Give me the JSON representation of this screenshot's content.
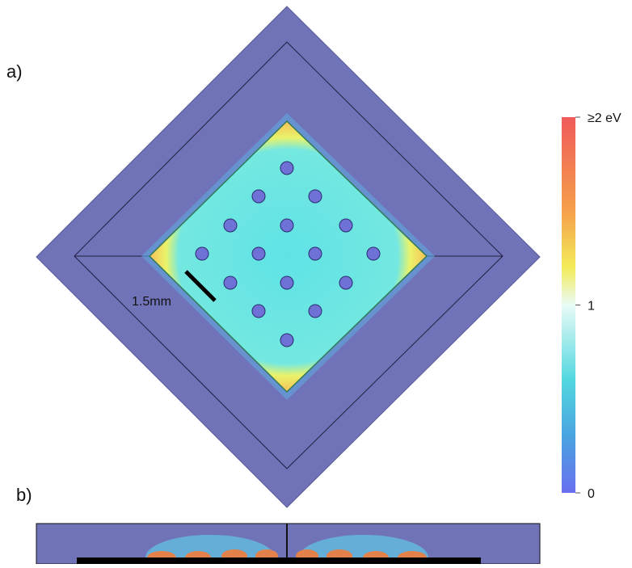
{
  "panel_a": {
    "label": "a)",
    "scale_bar": "1.5mm"
  },
  "panel_b": {
    "label": "b)"
  },
  "colorbar": {
    "range": [
      0,
      2
    ],
    "ticks": [
      {
        "value": 2,
        "label": "≥2 eV"
      },
      1,
      0
    ]
  }
}
